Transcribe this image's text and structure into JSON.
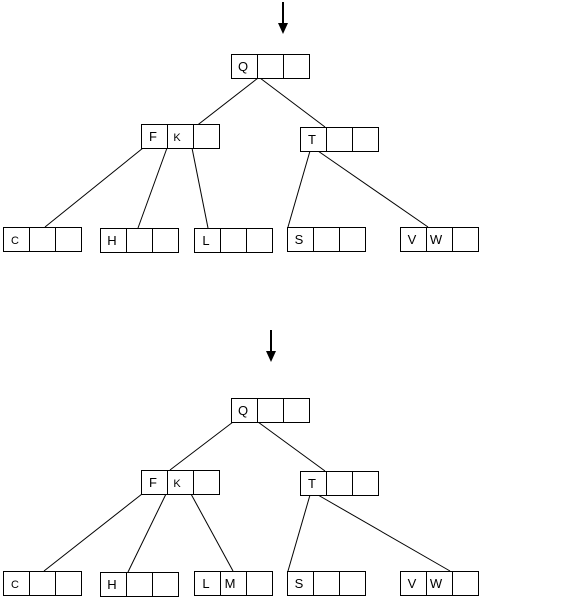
{
  "diagrams": [
    {
      "id": "before",
      "nodes": [
        {
          "id": "Q",
          "keys": [
            "Q",
            "",
            ""
          ]
        },
        {
          "id": "FK",
          "keys": [
            "F",
            "K",
            ""
          ]
        },
        {
          "id": "T",
          "keys": [
            "T",
            "",
            ""
          ]
        },
        {
          "id": "C",
          "keys": [
            "C",
            "",
            ""
          ]
        },
        {
          "id": "H",
          "keys": [
            "H",
            "",
            ""
          ]
        },
        {
          "id": "L",
          "keys": [
            "L",
            "",
            ""
          ]
        },
        {
          "id": "S",
          "keys": [
            "S",
            "",
            ""
          ]
        },
        {
          "id": "VW",
          "keys": [
            "V",
            "W",
            ""
          ]
        }
      ],
      "edges": [
        [
          "Q",
          "FK"
        ],
        [
          "Q",
          "T"
        ],
        [
          "FK",
          "C"
        ],
        [
          "FK",
          "H"
        ],
        [
          "FK",
          "L"
        ],
        [
          "T",
          "S"
        ],
        [
          "T",
          "VW"
        ]
      ]
    },
    {
      "id": "after",
      "nodes": [
        {
          "id": "Q",
          "keys": [
            "Q",
            "",
            ""
          ]
        },
        {
          "id": "FK",
          "keys": [
            "F",
            "K",
            ""
          ]
        },
        {
          "id": "T",
          "keys": [
            "T",
            "",
            ""
          ]
        },
        {
          "id": "C",
          "keys": [
            "C",
            "",
            ""
          ]
        },
        {
          "id": "H",
          "keys": [
            "H",
            "",
            ""
          ]
        },
        {
          "id": "LM",
          "keys": [
            "L",
            "M",
            ""
          ]
        },
        {
          "id": "S",
          "keys": [
            "S",
            "",
            ""
          ]
        },
        {
          "id": "VW",
          "keys": [
            "V",
            "W",
            ""
          ]
        }
      ],
      "edges": [
        [
          "Q",
          "FK"
        ],
        [
          "Q",
          "T"
        ],
        [
          "FK",
          "C"
        ],
        [
          "FK",
          "H"
        ],
        [
          "FK",
          "LM"
        ],
        [
          "T",
          "S"
        ],
        [
          "T",
          "VW"
        ]
      ]
    }
  ]
}
